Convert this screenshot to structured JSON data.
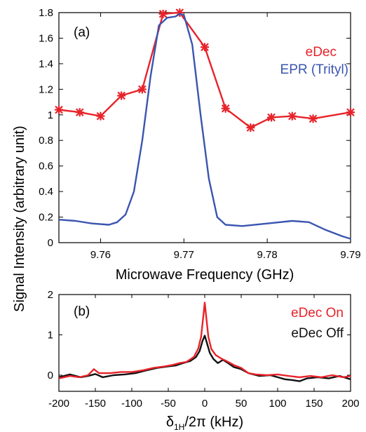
{
  "ylabel": "Signal Intensity (arbitrary unit)",
  "colors": {
    "red": "#e8232a",
    "blue": "#3a55b0",
    "black": "#111111"
  },
  "chart_data": [
    {
      "type": "line",
      "panel_label": "(a)",
      "xlabel": "Microwave Frequency (GHz)",
      "xlim": [
        9.755,
        9.79
      ],
      "ylim": [
        0,
        1.8
      ],
      "xticks": [
        9.76,
        9.77,
        9.78,
        9.79
      ],
      "xtick_labels": [
        "9.76",
        "9.77",
        "9.78",
        "9.79"
      ],
      "yticks": [
        0,
        0.2,
        0.4,
        0.6,
        0.8,
        1,
        1.2,
        1.4,
        1.6,
        1.8
      ],
      "ytick_labels": [
        "0",
        "0.2",
        "0.4",
        "0.6",
        "0.8",
        "1",
        "1.2",
        "1.4",
        "1.6",
        "1.8"
      ],
      "legend_position": "top-right",
      "series": [
        {
          "name": "eDec",
          "color": "#e8232a",
          "markers": true,
          "points": [
            [
              9.755,
              1.04
            ],
            [
              9.7575,
              1.02
            ],
            [
              9.76,
              0.99
            ],
            [
              9.7625,
              1.15
            ],
            [
              9.765,
              1.2
            ],
            [
              9.7675,
              1.79
            ],
            [
              9.7695,
              1.8
            ],
            [
              9.7725,
              1.53
            ],
            [
              9.775,
              1.05
            ],
            [
              9.778,
              0.9
            ],
            [
              9.7805,
              0.98
            ],
            [
              9.783,
              0.99
            ],
            [
              9.7855,
              0.97
            ],
            [
              9.79,
              1.02
            ]
          ]
        },
        {
          "name": "EPR (Trityl)",
          "color": "#3a55b0",
          "markers": false,
          "points": [
            [
              9.755,
              0.18
            ],
            [
              9.757,
              0.17
            ],
            [
              9.759,
              0.15
            ],
            [
              9.761,
              0.14
            ],
            [
              9.762,
              0.16
            ],
            [
              9.763,
              0.22
            ],
            [
              9.764,
              0.4
            ],
            [
              9.765,
              0.8
            ],
            [
              9.766,
              1.3
            ],
            [
              9.767,
              1.7
            ],
            [
              9.768,
              1.76
            ],
            [
              9.769,
              1.77
            ],
            [
              9.7695,
              1.79
            ],
            [
              9.77,
              1.78
            ],
            [
              9.771,
              1.55
            ],
            [
              9.772,
              1.0
            ],
            [
              9.773,
              0.5
            ],
            [
              9.774,
              0.2
            ],
            [
              9.775,
              0.14
            ],
            [
              9.777,
              0.13
            ],
            [
              9.78,
              0.15
            ],
            [
              9.783,
              0.17
            ],
            [
              9.785,
              0.16
            ],
            [
              9.787,
              0.1
            ],
            [
              9.789,
              0.05
            ],
            [
              9.79,
              0.03
            ]
          ]
        }
      ]
    },
    {
      "type": "line",
      "panel_label": "(b)",
      "xlabel_main": "δ",
      "xlabel_sub": "1H",
      "xlabel_rest": "/2π (kHz)",
      "xlim": [
        -200,
        200
      ],
      "ylim": [
        -0.4,
        2
      ],
      "xticks": [
        -200,
        -150,
        -100,
        -50,
        0,
        50,
        100,
        150,
        200
      ],
      "xtick_labels": [
        "-200",
        "-150",
        "-100",
        "-50",
        "0",
        "50",
        "100",
        "150",
        "200"
      ],
      "yticks": [
        0,
        1,
        2
      ],
      "ytick_labels": [
        "0",
        "1",
        "2"
      ],
      "legend_position": "top-right",
      "series": [
        {
          "name": "eDec Off",
          "color": "#111111",
          "points": [
            [
              -200,
              -0.05
            ],
            [
              -185,
              0.02
            ],
            [
              -170,
              -0.05
            ],
            [
              -160,
              -0.02
            ],
            [
              -150,
              0.03
            ],
            [
              -140,
              -0.05
            ],
            [
              -125,
              0.0
            ],
            [
              -110,
              0.02
            ],
            [
              -95,
              0.05
            ],
            [
              -80,
              0.12
            ],
            [
              -65,
              0.18
            ],
            [
              -50,
              0.22
            ],
            [
              -40,
              0.24
            ],
            [
              -30,
              0.3
            ],
            [
              -20,
              0.35
            ],
            [
              -12,
              0.45
            ],
            [
              -7,
              0.6
            ],
            [
              -3,
              0.85
            ],
            [
              0,
              0.98
            ],
            [
              3,
              0.8
            ],
            [
              7,
              0.55
            ],
            [
              12,
              0.4
            ],
            [
              18,
              0.3
            ],
            [
              25,
              0.38
            ],
            [
              32,
              0.3
            ],
            [
              40,
              0.2
            ],
            [
              50,
              0.15
            ],
            [
              60,
              0.05
            ],
            [
              75,
              -0.02
            ],
            [
              90,
              0.0
            ],
            [
              100,
              -0.05
            ],
            [
              110,
              -0.1
            ],
            [
              120,
              -0.12
            ],
            [
              130,
              -0.15
            ],
            [
              140,
              -0.08
            ],
            [
              155,
              -0.05
            ],
            [
              170,
              -0.08
            ],
            [
              185,
              -0.02
            ],
            [
              200,
              -0.1
            ]
          ]
        },
        {
          "name": "eDec On",
          "color": "#e8232a",
          "points": [
            [
              -200,
              -0.08
            ],
            [
              -185,
              -0.02
            ],
            [
              -172,
              -0.05
            ],
            [
              -160,
              0.0
            ],
            [
              -152,
              0.15
            ],
            [
              -145,
              0.05
            ],
            [
              -130,
              0.05
            ],
            [
              -115,
              0.08
            ],
            [
              -100,
              0.08
            ],
            [
              -85,
              0.12
            ],
            [
              -70,
              0.18
            ],
            [
              -55,
              0.22
            ],
            [
              -45,
              0.25
            ],
            [
              -35,
              0.3
            ],
            [
              -25,
              0.33
            ],
            [
              -15,
              0.45
            ],
            [
              -9,
              0.65
            ],
            [
              -5,
              0.95
            ],
            [
              -2,
              1.45
            ],
            [
              0,
              1.8
            ],
            [
              2,
              1.45
            ],
            [
              5,
              0.95
            ],
            [
              9,
              0.65
            ],
            [
              15,
              0.5
            ],
            [
              22,
              0.42
            ],
            [
              30,
              0.35
            ],
            [
              40,
              0.25
            ],
            [
              50,
              0.18
            ],
            [
              60,
              0.05
            ],
            [
              70,
              0.02
            ],
            [
              85,
              0.0
            ],
            [
              100,
              0.02
            ],
            [
              115,
              -0.02
            ],
            [
              130,
              -0.05
            ],
            [
              145,
              -0.02
            ],
            [
              160,
              -0.05
            ],
            [
              175,
              0.0
            ],
            [
              190,
              -0.05
            ],
            [
              200,
              -0.02
            ]
          ]
        }
      ]
    }
  ]
}
